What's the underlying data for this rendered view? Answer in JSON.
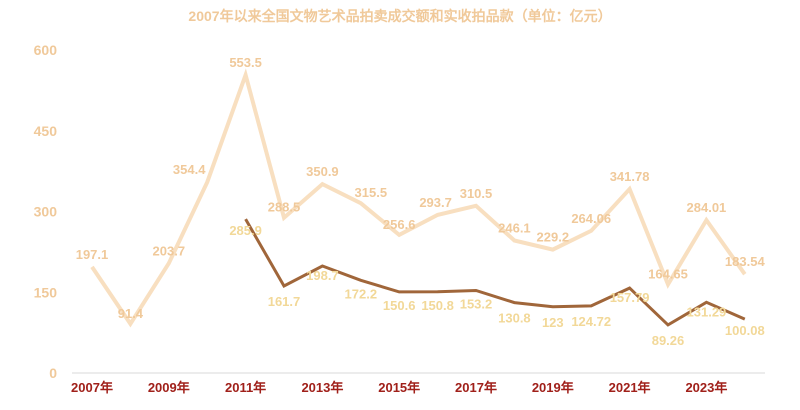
{
  "chart_data": {
    "type": "line",
    "title": "2007年以来全国文物艺术品拍卖成交额和实收拍品款（单位：亿元）",
    "xlabel": "",
    "ylabel": "",
    "ylim": [
      0,
      600
    ],
    "yticks": [
      0,
      150,
      300,
      450,
      600
    ],
    "grid": false,
    "legend": null,
    "x": [
      "2007年",
      "2008年",
      "2009年",
      "2010年",
      "2011年",
      "2012年",
      "2013年",
      "2014年",
      "2015年",
      "2016年",
      "2017年",
      "2018年",
      "2019年",
      "2020年",
      "2021年",
      "2022年",
      "2023年",
      "2024年"
    ],
    "x_tick_labels": [
      "2007年",
      "2009年",
      "2011年",
      "2013年",
      "2015年",
      "2017年",
      "2019年",
      "2021年",
      "2023年"
    ],
    "series": [
      {
        "name": "拍卖成交额",
        "color": "#f8dfc0",
        "label_color": "#f0c99a",
        "values": [
          197.1,
          91.4,
          203.7,
          354.4,
          553.5,
          288.5,
          350.9,
          315.5,
          256.6,
          293.7,
          310.5,
          246.1,
          229.2,
          264.06,
          341.78,
          164.65,
          284.01,
          183.54
        ],
        "labels": [
          "197.1",
          "91.4",
          "203.7",
          "354.4",
          "553.5",
          "288.5",
          "350.9",
          "315.5",
          "256.6",
          "293.7",
          "310.5",
          "246.1",
          "229.2",
          "264.06",
          "341.78",
          "164.65",
          "284.01",
          "183.54"
        ]
      },
      {
        "name": "实收拍品款",
        "color": "#a0663a",
        "label_color": "#f2d898",
        "start_index": 4,
        "values": [
          null,
          null,
          null,
          null,
          285.9,
          161.7,
          198.7,
          172.2,
          150.6,
          150.8,
          153.2,
          130.8,
          123,
          124.72,
          157.79,
          89.26,
          131.29,
          100.08
        ],
        "labels": [
          "",
          "",
          "",
          "",
          "285.9",
          "161.7",
          "198.7",
          "172.2",
          "150.6",
          "150.8",
          "153.2",
          "130.8",
          "123",
          "124.72",
          "157.79",
          "89.26",
          "131.29",
          "100.08"
        ]
      }
    ]
  },
  "title": "2007年以来全国文物艺术品拍卖成交额和实收拍品款（单位：亿元）",
  "axis_color": "#d9d9d9",
  "xtick_color": "#a0201a",
  "ytick_color": "#f0c99a"
}
